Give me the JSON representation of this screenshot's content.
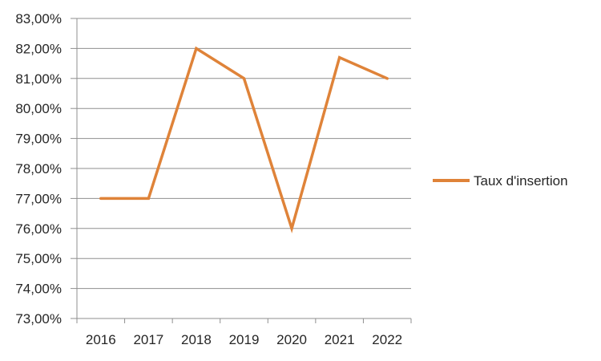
{
  "chart_data": {
    "type": "line",
    "title": "",
    "xlabel": "",
    "ylabel": "",
    "categories": [
      "2016",
      "2017",
      "2018",
      "2019",
      "2020",
      "2021",
      "2022"
    ],
    "series": [
      {
        "name": "Taux d'insertion",
        "values": [
          77.0,
          77.0,
          82.0,
          81.0,
          76.0,
          81.7,
          81.0
        ],
        "color": "#DF8339"
      }
    ],
    "ylim": [
      73,
      83
    ],
    "ytick_step": 1,
    "ytick_labels": [
      "83,00%",
      "82,00%",
      "81,00%",
      "80,00%",
      "79,00%",
      "78,00%",
      "77,00%",
      "76,00%",
      "75,00%",
      "74,00%",
      "73,00%"
    ],
    "grid": true,
    "legend_position": "right",
    "colors": {
      "line": "#DF8339",
      "gridline": "#8F8F8F",
      "axis": "#8F8F8F",
      "text": "#262626",
      "background": "#FFFFFF"
    }
  }
}
